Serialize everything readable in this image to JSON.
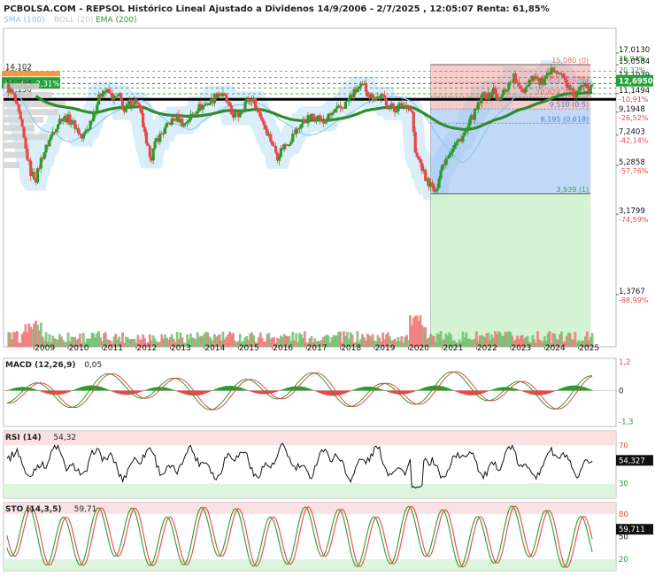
{
  "header": {
    "title": "PCBOLSA.COM - REPSOL Histórico Lineal Ajustado a Dividenos 14/9/2006 - 2/7/2025 , 12:05:07 Renta: 61,85%",
    "legend": [
      {
        "label": "SMA (100)",
        "color": "#7fc7ef"
      },
      {
        "label": "BOLL (20)",
        "color": "#c9c9c9"
      },
      {
        "label": "EMA (200)",
        "color": "#2e9a2e"
      }
    ]
  },
  "chart_data": [
    {
      "type": "line",
      "name": "price",
      "x_ticks": [
        "2009",
        "2010",
        "2011",
        "2012",
        "2013",
        "2014",
        "2015",
        "2016",
        "2017",
        "2018",
        "2019",
        "2020",
        "2021",
        "2022",
        "2023",
        "2024",
        "2025"
      ],
      "x_tick_years": [
        2009,
        2010,
        2011,
        2012,
        2013,
        2014,
        2015,
        2016,
        2017,
        2018,
        2019,
        2020,
        2021,
        2022,
        2023,
        2024,
        2025
      ],
      "x_range": [
        2008.1,
        2026.1
      ],
      "y_log": true,
      "y_range": [
        0.8,
        22.0
      ],
      "right_axis": [
        {
          "price": "17,0130",
          "pct": "35,94%",
          "v": 17.013
        },
        {
          "price": "15,0584",
          "pct": "20,32%",
          "v": 15.0584
        },
        {
          "price": "13,1039",
          "pct": "4,70%",
          "v": 13.1039
        },
        {
          "price": "11,1494",
          "pct": "-10,91%",
          "v": 11.1494
        },
        {
          "price": "9,1948",
          "pct": "-26,52%",
          "v": 9.1948
        },
        {
          "price": "7,2403",
          "pct": "-42,14%",
          "v": 7.2403
        },
        {
          "price": "5,2858",
          "pct": "-57,76%",
          "v": 5.2858
        },
        {
          "price": "3,1799",
          "pct": "-74,59%",
          "v": 3.1799
        },
        {
          "price": "1,3767",
          "pct": "-88,99%",
          "v": 1.3767
        }
      ],
      "current_price": "12,6950",
      "current_value": 12.695,
      "left_labels": [
        {
          "text": "14,102",
          "v": 14.102
        },
        {
          "text": "13,170",
          "v": 13.17
        },
        {
          "text": "12,401 -2,31%",
          "v": 12.401
        },
        {
          "text": "11,835",
          "v": 11.835
        },
        {
          "text": "11,130",
          "v": 11.13
        },
        {
          "text": "10,506",
          "v": 10.506
        }
      ],
      "support_line": 10.506,
      "fibonacci": {
        "start_year": 2020.65,
        "end_year": 2025.35,
        "levels": [
          {
            "label": "15,080 (0)",
            "v": 15.08,
            "color": "#e36c6c"
          },
          {
            "label": "12,451 (0.236)",
            "v": 12.451,
            "color": "#e36c6c"
          },
          {
            "label": "10,824 (0.382)",
            "v": 10.824,
            "color": "#e36c6c"
          },
          {
            "label": "9,510 (0.5)",
            "v": 9.51,
            "color": "#4a7fd8"
          },
          {
            "label": "8,195 (0.618)",
            "v": 8.195,
            "color": "#4a7fd8"
          },
          {
            "label": "3,939 (1)",
            "v": 3.939,
            "color": "#3fa83f"
          }
        ]
      },
      "price_series": [
        [
          2008.2,
          12.0
        ],
        [
          2008.4,
          10.8
        ],
        [
          2008.6,
          8.3
        ],
        [
          2008.75,
          6.2
        ],
        [
          2008.9,
          4.9
        ],
        [
          2009.05,
          4.6
        ],
        [
          2009.2,
          5.6
        ],
        [
          2009.4,
          6.6
        ],
        [
          2009.6,
          7.8
        ],
        [
          2009.8,
          8.7
        ],
        [
          2010.0,
          8.6
        ],
        [
          2010.2,
          8.0
        ],
        [
          2010.4,
          7.0
        ],
        [
          2010.6,
          7.9
        ],
        [
          2010.8,
          9.6
        ],
        [
          2011.0,
          11.6
        ],
        [
          2011.2,
          11.2
        ],
        [
          2011.35,
          10.6
        ],
        [
          2011.5,
          10.8
        ],
        [
          2011.65,
          9.2
        ],
        [
          2011.8,
          10.1
        ],
        [
          2012.0,
          10.4
        ],
        [
          2012.15,
          8.8
        ],
        [
          2012.3,
          6.4
        ],
        [
          2012.45,
          5.8
        ],
        [
          2012.6,
          6.9
        ],
        [
          2012.8,
          7.5
        ],
        [
          2013.0,
          8.3
        ],
        [
          2013.2,
          8.7
        ],
        [
          2013.4,
          8.1
        ],
        [
          2013.6,
          8.8
        ],
        [
          2013.8,
          9.6
        ],
        [
          2014.0,
          9.9
        ],
        [
          2014.2,
          10.3
        ],
        [
          2014.4,
          11.3
        ],
        [
          2014.6,
          10.7
        ],
        [
          2014.8,
          9.0
        ],
        [
          2015.0,
          8.9
        ],
        [
          2015.2,
          10.2
        ],
        [
          2015.4,
          10.6
        ],
        [
          2015.6,
          9.2
        ],
        [
          2015.8,
          7.8
        ],
        [
          2016.0,
          6.6
        ],
        [
          2016.15,
          5.8
        ],
        [
          2016.3,
          6.4
        ],
        [
          2016.5,
          6.8
        ],
        [
          2016.7,
          7.6
        ],
        [
          2016.9,
          8.3
        ],
        [
          2017.1,
          8.7
        ],
        [
          2017.3,
          8.9
        ],
        [
          2017.5,
          8.2
        ],
        [
          2017.7,
          8.9
        ],
        [
          2017.9,
          9.4
        ],
        [
          2018.1,
          9.8
        ],
        [
          2018.3,
          10.8
        ],
        [
          2018.5,
          11.7
        ],
        [
          2018.7,
          12.0
        ],
        [
          2018.85,
          10.9
        ],
        [
          2019.0,
          10.7
        ],
        [
          2019.2,
          10.8
        ],
        [
          2019.4,
          10.0
        ],
        [
          2019.6,
          9.5
        ],
        [
          2019.8,
          9.9
        ],
        [
          2020.0,
          9.9
        ],
        [
          2020.1,
          9.1
        ],
        [
          2020.2,
          5.9
        ],
        [
          2020.35,
          5.4
        ],
        [
          2020.5,
          4.6
        ],
        [
          2020.6,
          4.4
        ],
        [
          2020.7,
          4.2
        ],
        [
          2020.8,
          3.9
        ],
        [
          2020.9,
          4.8
        ],
        [
          2021.0,
          5.3
        ],
        [
          2021.15,
          5.9
        ],
        [
          2021.3,
          6.4
        ],
        [
          2021.5,
          6.9
        ],
        [
          2021.7,
          7.5
        ],
        [
          2021.85,
          8.6
        ],
        [
          2022.0,
          9.4
        ],
        [
          2022.2,
          11.1
        ],
        [
          2022.35,
          10.8
        ],
        [
          2022.5,
          11.6
        ],
        [
          2022.65,
          10.2
        ],
        [
          2022.8,
          11.4
        ],
        [
          2022.95,
          12.3
        ],
        [
          2023.1,
          13.3
        ],
        [
          2023.25,
          11.7
        ],
        [
          2023.4,
          11.6
        ],
        [
          2023.55,
          12.9
        ],
        [
          2023.7,
          13.5
        ],
        [
          2023.85,
          12.5
        ],
        [
          2024.0,
          12.7
        ],
        [
          2024.15,
          13.6
        ],
        [
          2024.3,
          14.8
        ],
        [
          2024.45,
          13.7
        ],
        [
          2024.6,
          12.8
        ],
        [
          2024.75,
          11.4
        ],
        [
          2024.9,
          10.9
        ],
        [
          2025.05,
          11.6
        ],
        [
          2025.2,
          12.7
        ],
        [
          2025.3,
          11.9
        ],
        [
          2025.4,
          12.7
        ]
      ]
    },
    {
      "type": "bar",
      "name": "MACD",
      "title": "MACD (12,26,9)",
      "value": "0,05",
      "y_ticks": [
        "1,2",
        "0",
        "-1,3"
      ],
      "y_tick_values": [
        1.2,
        0,
        -1.3
      ],
      "y_range": [
        -1.5,
        1.35
      ]
    },
    {
      "type": "line",
      "name": "RSI",
      "title": "RSI (14)",
      "value": "54,32",
      "current": "54,327",
      "y_ticks": [
        "70",
        "30"
      ],
      "y_tick_values": [
        70,
        30
      ],
      "y_range": [
        15,
        85
      ]
    },
    {
      "type": "line",
      "name": "STO",
      "title": "STO (14,3,5)",
      "value": "59,71",
      "current": "59,711",
      "y_ticks": [
        "80",
        "50",
        "20"
      ],
      "y_tick_values": [
        80,
        50,
        20
      ],
      "y_range": [
        5,
        95
      ]
    }
  ],
  "colors": {
    "up": "#2e9a2e",
    "down": "#e84848",
    "ema": "#2e8b2e",
    "sma": "#8ccbef",
    "boll_fill": "#d6ecfa",
    "accent_green": "#23a23a",
    "accent_orange": "#f39c34"
  }
}
